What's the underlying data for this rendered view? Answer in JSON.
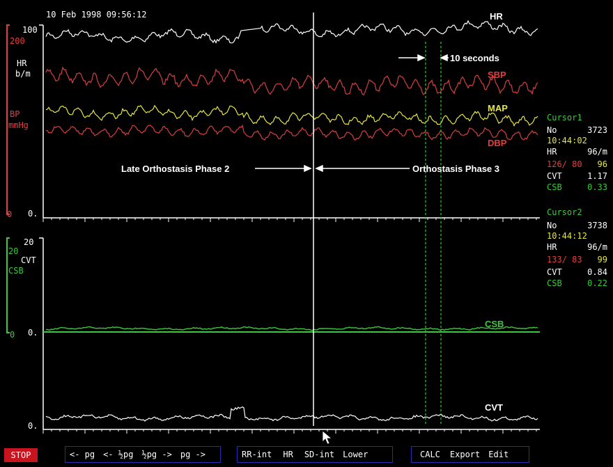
{
  "header": {
    "timestamp": "10 Feb 1998 09:56:12"
  },
  "axes": {
    "hr_label_line1": "HR",
    "hr_label_line2": "b/m",
    "hr_top_tick": "100",
    "bp_top_tick": "200",
    "bp_label_line1": "BP",
    "bp_label_line2": "mmHg",
    "bp_zero_red": "0",
    "upper_zero": "0.",
    "cvt_top_tick": "20",
    "cvt_label": "CVT",
    "csb_label": "CSB",
    "lower_green_zero": "0",
    "lower_zero": "0."
  },
  "trace_labels": {
    "hr": "HR",
    "sbp": "SBP",
    "map": "MAP",
    "dbp": "DBP",
    "csb": "CSB",
    "cvt": "CVT"
  },
  "annotations": {
    "ten_seconds": "10 seconds",
    "phase2": "Late Orthostasis Phase 2",
    "phase3": "Orthostasis Phase 3"
  },
  "cursor1": {
    "title": "Cursor1",
    "no_label": "No",
    "no_value": "3723",
    "time": "10:44:02",
    "hr_label": "HR",
    "hr_value": "96/m",
    "bp_value": "126/ 80",
    "map_value": "96",
    "cvt_label": "CVT",
    "cvt_value": "1.17",
    "csb_label": "CSB",
    "csb_value": "0.33"
  },
  "cursor2": {
    "title": "Cursor2",
    "no_label": "No",
    "no_value": "3738",
    "time": "10:44:12",
    "hr_label": "HR",
    "hr_value": "96/m",
    "bp_value": "133/ 83",
    "map_value": "99",
    "cvt_label": "CVT",
    "cvt_value": "0.84",
    "csb_label": "CSB",
    "csb_value": "0.22"
  },
  "toolbar": {
    "stop": "STOP",
    "nav": [
      "<- pg",
      "<- ½pg",
      "½pg ->",
      "pg ->"
    ],
    "analysis": [
      "RR-int",
      "HR",
      "SD-int",
      "Lower"
    ],
    "actions": [
      "CALC",
      "Export",
      "Edit"
    ]
  },
  "colors": {
    "red": "#e83c3c",
    "bp_red": "#d64040",
    "yellow": "#e6e645",
    "green": "#3cc83c",
    "white": "#ffffff",
    "toolbar_border": "#2a2ab0"
  }
}
